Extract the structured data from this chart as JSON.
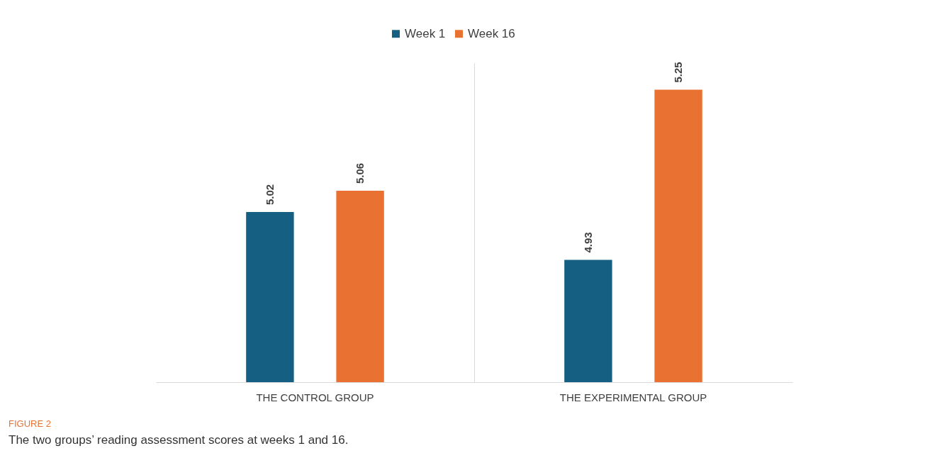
{
  "chart_data": {
    "type": "bar",
    "categories": [
      "THE CONTROL GROUP",
      "THE EXPERIMENTAL GROUP"
    ],
    "series": [
      {
        "name": "Week 1",
        "color": "#156082",
        "values": [
          5.02,
          4.93
        ]
      },
      {
        "name": "Week 16",
        "color": "#e97132",
        "values": [
          5.06,
          5.25
        ]
      }
    ],
    "ylim": [
      4.7,
      5.3
    ],
    "tick_labels": "x",
    "data_labels": true,
    "legend": "top",
    "annotations": [
      "FIGURE 2",
      "The two groups’ reading assessment scores at weeks 1 and 16."
    ]
  }
}
